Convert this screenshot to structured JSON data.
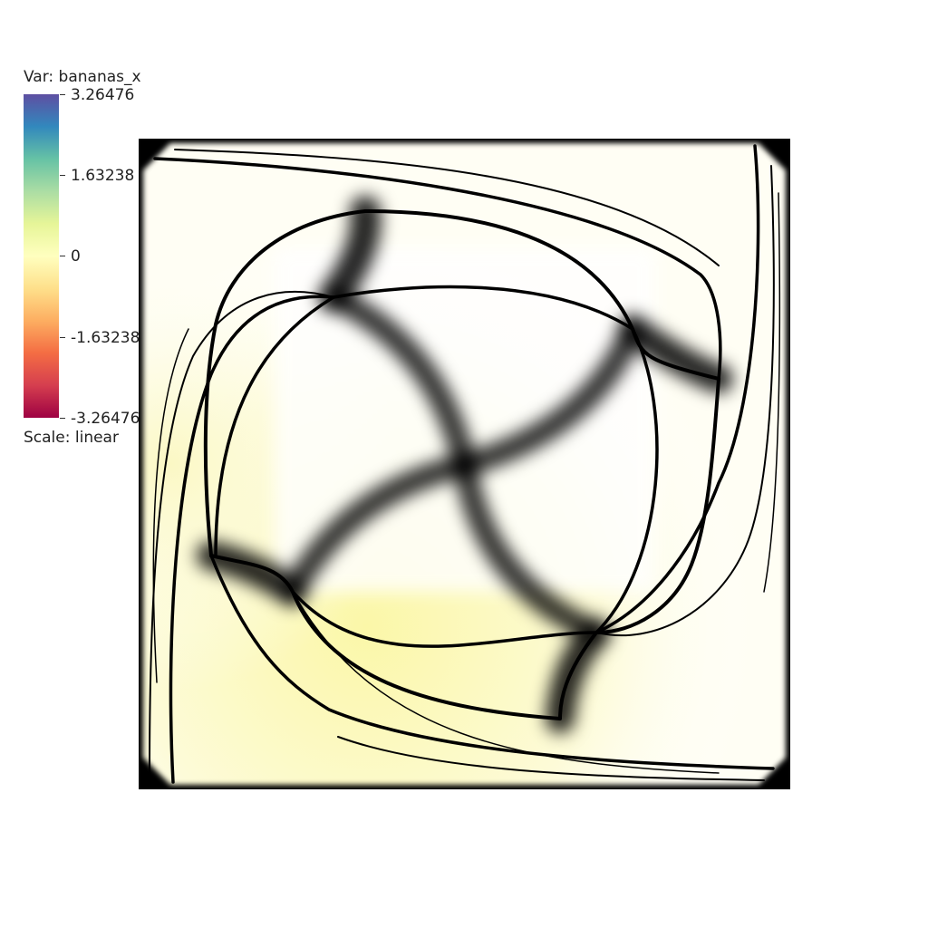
{
  "legend": {
    "title": "Var: bananas_x",
    "scale_label": "Scale: linear",
    "colormap": "Spectral",
    "ticks": [
      "3.26476",
      "1.63238",
      "0",
      "-1.63238",
      "-3.26476"
    ],
    "colors": [
      "#5e4fa2",
      "#3288bd",
      "#66c2a5",
      "#abdda4",
      "#e6f598",
      "#ffffbf",
      "#fee08b",
      "#fdae61",
      "#f46d43",
      "#d53e4f",
      "#9e0142"
    ]
  },
  "field": {
    "background_color": "#fffde0",
    "line_color": "#000000"
  }
}
